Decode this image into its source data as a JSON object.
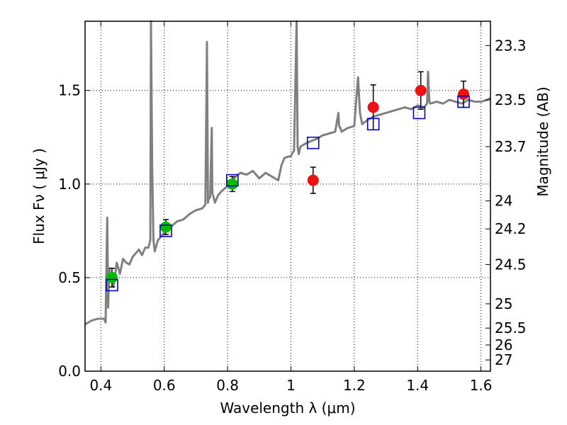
{
  "chart_data": {
    "type": "scatter",
    "xlabel": "Wavelength  λ (μm)",
    "ylabel": "Flux  Fν  ( μJy )",
    "ylabel_right": "Magnitude (AB)",
    "xlim": [
      0.35,
      1.63
    ],
    "ylim": [
      0.0,
      1.87
    ],
    "grid": true,
    "x_ticks": [
      0.4,
      0.6,
      0.8,
      1.0,
      1.2,
      1.4,
      1.6
    ],
    "x_tick_labels": [
      "0.4",
      "0.6",
      "0.8",
      "1",
      "1.2",
      "1.4",
      "1.6"
    ],
    "y_ticks": [
      0.0,
      0.5,
      1.0,
      1.5
    ],
    "y_tick_labels": [
      "0.0",
      "0.5",
      "1.0",
      "1.5"
    ],
    "right_ticks": [
      {
        "flux": 1.74,
        "label": "23.3"
      },
      {
        "flux": 1.45,
        "label": "23.5"
      },
      {
        "flux": 1.2,
        "label": "23.7"
      },
      {
        "flux": 0.91,
        "label": "24"
      },
      {
        "flux": 0.76,
        "label": "24.2"
      },
      {
        "flux": 0.57,
        "label": "24.5"
      },
      {
        "flux": 0.36,
        "label": "25"
      },
      {
        "flux": 0.23,
        "label": "25.5"
      },
      {
        "flux": 0.14,
        "label": "26"
      },
      {
        "flux": 0.06,
        "label": "27"
      }
    ],
    "colors": {
      "spectrum": "#808080",
      "green_points": "#00bb00",
      "red_points": "#ee1111",
      "model_boxes": "#0000cc",
      "errorbars": "#000000"
    },
    "series": [
      {
        "marker": "line",
        "x": [
          0.35,
          0.37,
          0.39,
          0.41,
          0.415,
          0.42,
          0.423,
          0.426,
          0.43,
          0.44,
          0.45,
          0.46,
          0.47,
          0.48,
          0.49,
          0.5,
          0.51,
          0.52,
          0.53,
          0.54,
          0.55,
          0.556,
          0.558,
          0.562,
          0.566,
          0.57,
          0.58,
          0.6,
          0.62,
          0.64,
          0.66,
          0.68,
          0.7,
          0.72,
          0.73,
          0.735,
          0.738,
          0.74,
          0.745,
          0.75,
          0.752,
          0.756,
          0.76,
          0.77,
          0.78,
          0.8,
          0.82,
          0.84,
          0.86,
          0.88,
          0.9,
          0.92,
          0.94,
          0.96,
          0.97,
          0.98,
          1.0,
          1.01,
          1.018,
          1.021,
          1.025,
          1.03,
          1.05,
          1.08,
          1.1,
          1.12,
          1.14,
          1.15,
          1.152,
          1.156,
          1.16,
          1.18,
          1.2,
          1.212,
          1.218,
          1.225,
          1.24,
          1.26,
          1.28,
          1.3,
          1.32,
          1.34,
          1.36,
          1.38,
          1.4,
          1.42,
          1.43,
          1.433,
          1.437,
          1.44,
          1.46,
          1.48,
          1.5,
          1.52,
          1.54,
          1.56,
          1.58,
          1.6,
          1.62,
          1.63
        ],
        "y": [
          0.25,
          0.27,
          0.28,
          0.28,
          0.26,
          0.82,
          0.34,
          0.55,
          0.52,
          0.45,
          0.58,
          0.52,
          0.6,
          0.58,
          0.57,
          0.61,
          0.63,
          0.65,
          0.62,
          0.66,
          0.66,
          0.7,
          1.87,
          1.1,
          0.7,
          0.64,
          0.7,
          0.74,
          0.77,
          0.8,
          0.81,
          0.84,
          0.86,
          0.87,
          0.89,
          1.76,
          0.9,
          0.92,
          0.93,
          1.3,
          0.95,
          0.93,
          0.9,
          0.94,
          0.96,
          0.99,
          1.03,
          1.06,
          1.05,
          1.07,
          1.03,
          1.06,
          1.04,
          1.02,
          1.1,
          1.14,
          1.15,
          1.18,
          1.87,
          1.2,
          1.16,
          1.2,
          1.22,
          1.24,
          1.26,
          1.27,
          1.28,
          1.38,
          1.31,
          1.3,
          1.28,
          1.3,
          1.31,
          1.57,
          1.38,
          1.32,
          1.34,
          1.36,
          1.37,
          1.38,
          1.39,
          1.4,
          1.41,
          1.4,
          1.42,
          1.41,
          1.43,
          1.6,
          1.44,
          1.43,
          1.44,
          1.43,
          1.45,
          1.44,
          1.43,
          1.45,
          1.44,
          1.44,
          1.45,
          1.46
        ]
      },
      {
        "marker": "circle-green",
        "x": [
          0.435,
          0.605,
          0.815
        ],
        "y": [
          0.5,
          0.77,
          1.0
        ],
        "yerr": [
          0.05,
          0.04,
          0.04
        ]
      },
      {
        "marker": "circle-red",
        "x": [
          1.07,
          1.26,
          1.41,
          1.545
        ],
        "y": [
          1.02,
          1.41,
          1.5,
          1.48
        ],
        "yerr": [
          0.07,
          0.12,
          0.1,
          0.07
        ]
      },
      {
        "marker": "square-blue",
        "x": [
          0.435,
          0.605,
          0.815,
          1.07,
          1.26,
          1.405,
          1.545
        ],
        "y": [
          0.46,
          0.75,
          1.02,
          1.22,
          1.32,
          1.38,
          1.44
        ]
      }
    ]
  }
}
